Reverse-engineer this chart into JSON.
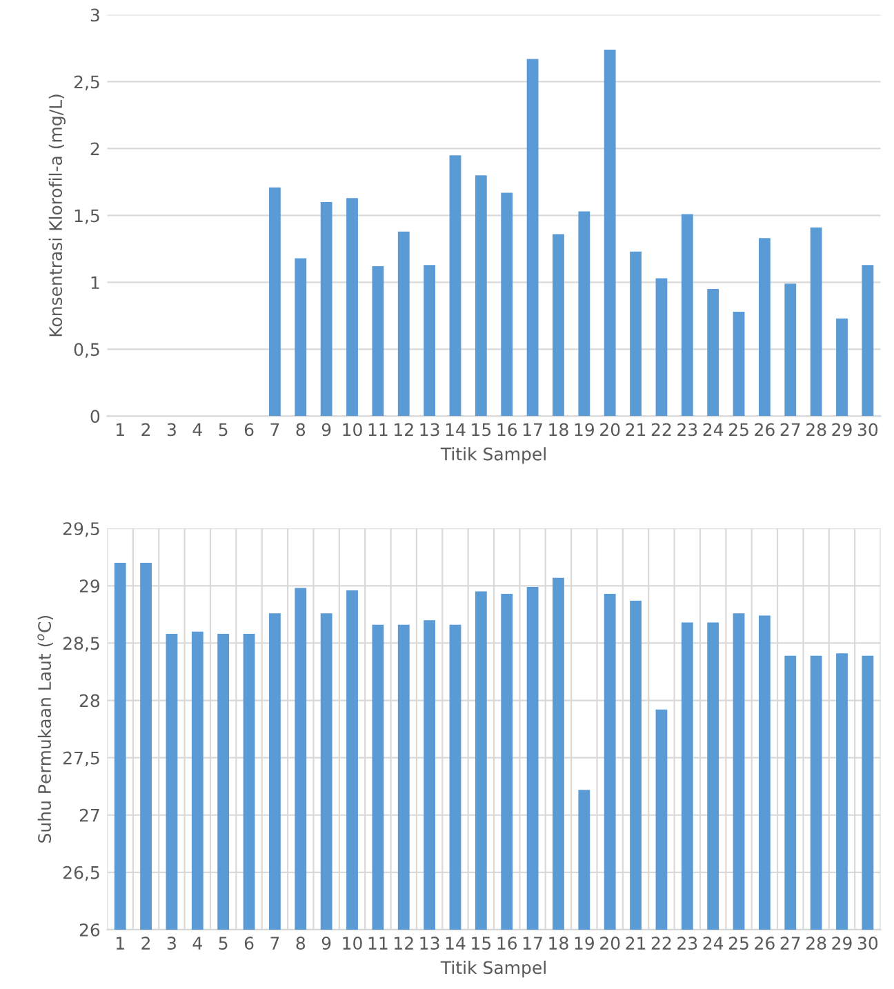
{
  "chart_data": [
    {
      "type": "bar",
      "xlabel": "Titik Sampel",
      "ylabel": "Konsentrasi Klorofil-a (mg/L)",
      "categories": [
        "1",
        "2",
        "3",
        "4",
        "5",
        "6",
        "7",
        "8",
        "9",
        "10",
        "11",
        "12",
        "13",
        "14",
        "15",
        "16",
        "17",
        "18",
        "19",
        "20",
        "21",
        "22",
        "23",
        "24",
        "25",
        "26",
        "27",
        "28",
        "29",
        "30"
      ],
      "values": [
        null,
        null,
        null,
        null,
        null,
        null,
        1.71,
        1.18,
        1.6,
        1.63,
        1.12,
        1.38,
        1.13,
        1.95,
        1.8,
        1.67,
        2.67,
        1.36,
        1.53,
        2.74,
        1.23,
        1.03,
        1.51,
        0.95,
        0.78,
        1.33,
        0.99,
        1.41,
        0.73,
        1.13
      ],
      "color": "#5b9bd5",
      "ylim": [
        0,
        3
      ],
      "yticks": [
        0,
        {
          "value": 0.5,
          "label": "0,5"
        },
        1,
        {
          "value": 1.5,
          "label": "1,5"
        },
        2,
        {
          "value": 2.5,
          "label": "2,5"
        },
        3
      ],
      "grid": "y"
    },
    {
      "type": "bar",
      "xlabel": "Titik Sampel",
      "ylabel": "Suhu Permukaan Laut ($^{o}$C)",
      "categories": [
        "1",
        "2",
        "3",
        "4",
        "5",
        "6",
        "7",
        "8",
        "9",
        "10",
        "11",
        "12",
        "13",
        "14",
        "15",
        "16",
        "17",
        "18",
        "19",
        "20",
        "21",
        "22",
        "23",
        "24",
        "25",
        "26",
        "27",
        "28",
        "29",
        "30"
      ],
      "values": [
        29.2,
        29.2,
        28.58,
        28.6,
        28.58,
        28.58,
        28.76,
        28.98,
        28.76,
        28.96,
        28.66,
        28.66,
        28.7,
        28.66,
        28.95,
        28.93,
        28.99,
        29.07,
        27.22,
        28.93,
        28.87,
        27.92,
        28.68,
        28.68,
        28.76,
        28.74,
        28.39,
        28.39,
        28.41,
        28.39
      ],
      "color": "#5b9bd5",
      "ylim": [
        26,
        29.5
      ],
      "yticks": [
        26,
        {
          "value": 26.5,
          "label": "26,5"
        },
        27,
        {
          "value": 27.5,
          "label": "27,5"
        },
        28,
        {
          "value": 28.5,
          "label": "28,5"
        },
        29,
        {
          "value": 29.5,
          "label": "29,5"
        }
      ],
      "grid": true
    }
  ]
}
